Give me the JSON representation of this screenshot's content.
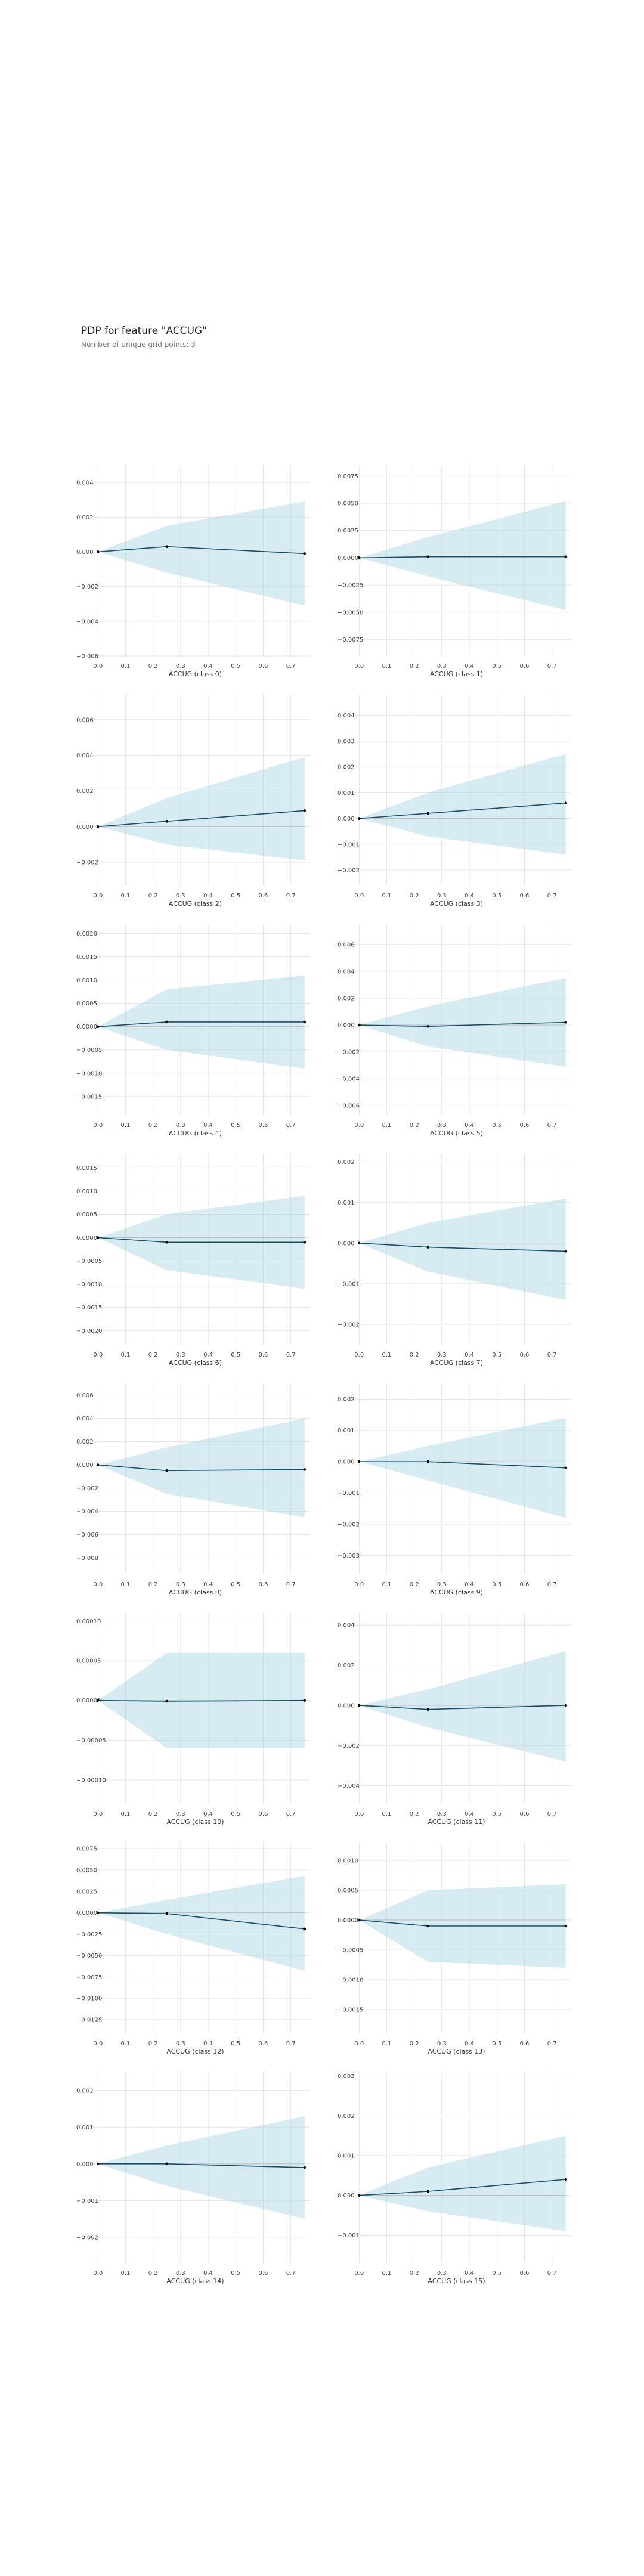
{
  "header": {
    "title": "PDP for feature \"ACCUG\"",
    "subtitle": "Number of unique grid points: 3"
  },
  "colors": {
    "band": "#add8e6",
    "line": "#1a4e66",
    "marker": "#000000",
    "zero": "#bbbbbb",
    "grid": "#e6e6e6"
  },
  "chart_data": [
    {
      "type": "line",
      "title": "",
      "xlabel": "ACCUG (class 0)",
      "x": [
        0,
        0.25,
        0.75
      ],
      "series": [
        {
          "values": [
            0,
            0.0003,
            -0.0001
          ]
        }
      ],
      "band_upper": [
        0,
        0.0015,
        0.0029
      ],
      "band_lower": [
        0,
        -0.0012,
        -0.0031
      ],
      "xticks": [
        0.0,
        0.1,
        0.2,
        0.3,
        0.4,
        0.5,
        0.6,
        0.7
      ],
      "xtick_labels": [
        "0.0",
        "0.1",
        "0.2",
        "0.3",
        "0.4",
        "0.5",
        "0.6",
        "0.7"
      ],
      "yticks": [
        -0.006,
        -0.004,
        -0.002,
        0,
        0.002,
        0.004
      ],
      "ytick_labels": [
        "−0.006",
        "−0.004",
        "−0.002",
        "0.000",
        "0.002",
        "0.004"
      ],
      "ylim": [
        -0.006,
        0.005
      ],
      "xlim": [
        -0.02,
        0.77
      ],
      "grid": true
    },
    {
      "type": "line",
      "title": "",
      "xlabel": "ACCUG (class 1)",
      "x": [
        0,
        0.25,
        0.75
      ],
      "series": [
        {
          "values": [
            0,
            0.0001,
            0.0001
          ]
        }
      ],
      "band_upper": [
        0,
        0.0019,
        0.0052
      ],
      "band_lower": [
        0,
        -0.0017,
        -0.0048
      ],
      "xticks": [
        0.0,
        0.1,
        0.2,
        0.3,
        0.4,
        0.5,
        0.6,
        0.7
      ],
      "xtick_labels": [
        "0.0",
        "0.1",
        "0.2",
        "0.3",
        "0.4",
        "0.5",
        "0.6",
        "0.7"
      ],
      "yticks": [
        -0.0075,
        -0.005,
        -0.0025,
        0,
        0.0025,
        0.005,
        0.0075
      ],
      "ytick_labels": [
        "−0.0075",
        "−0.0050",
        "−0.0025",
        "0.0000",
        "0.0025",
        "0.0050",
        "0.0075"
      ],
      "ylim": [
        -0.009,
        0.0085
      ],
      "xlim": [
        -0.02,
        0.77
      ],
      "grid": true
    },
    {
      "type": "line",
      "title": "",
      "xlabel": "ACCUG (class 2)",
      "x": [
        0,
        0.25,
        0.75
      ],
      "series": [
        {
          "values": [
            0,
            0.0003,
            0.0009
          ]
        }
      ],
      "band_upper": [
        0,
        0.0016,
        0.0039
      ],
      "band_lower": [
        0,
        -0.001,
        -0.0019
      ],
      "xticks": [
        0.0,
        0.1,
        0.2,
        0.3,
        0.4,
        0.5,
        0.6,
        0.7
      ],
      "xtick_labels": [
        "0.0",
        "0.1",
        "0.2",
        "0.3",
        "0.4",
        "0.5",
        "0.6",
        "0.7"
      ],
      "yticks": [
        -0.002,
        0,
        0.002,
        0.004,
        0.006
      ],
      "ytick_labels": [
        "−0.002",
        "0.000",
        "0.002",
        "0.004",
        "0.006"
      ],
      "ylim": [
        -0.0033,
        0.0074
      ],
      "xlim": [
        -0.02,
        0.77
      ],
      "grid": true
    },
    {
      "type": "line",
      "title": "",
      "xlabel": "ACCUG (class 3)",
      "x": [
        0,
        0.25,
        0.75
      ],
      "series": [
        {
          "values": [
            0,
            0.0002,
            0.0006
          ]
        }
      ],
      "band_upper": [
        0,
        0.001,
        0.0025
      ],
      "band_lower": [
        0,
        -0.0007,
        -0.0014
      ],
      "xticks": [
        0.0,
        0.1,
        0.2,
        0.3,
        0.4,
        0.5,
        0.6,
        0.7
      ],
      "xtick_labels": [
        "0.0",
        "0.1",
        "0.2",
        "0.3",
        "0.4",
        "0.5",
        "0.6",
        "0.7"
      ],
      "yticks": [
        -0.002,
        -0.001,
        0,
        0.001,
        0.002,
        0.003,
        0.004
      ],
      "ytick_labels": [
        "−0.002",
        "−0.001",
        "0.000",
        "0.001",
        "0.002",
        "0.003",
        "0.004"
      ],
      "ylim": [
        -0.0026,
        0.0048
      ],
      "xlim": [
        -0.02,
        0.77
      ],
      "grid": true
    },
    {
      "type": "line",
      "title": "",
      "xlabel": "ACCUG (class 4)",
      "x": [
        0,
        0.25,
        0.75
      ],
      "series": [
        {
          "values": [
            0,
            0.0001,
            0.0001
          ]
        }
      ],
      "band_upper": [
        0,
        0.0008,
        0.0011
      ],
      "band_lower": [
        0,
        -0.0005,
        -0.0009
      ],
      "xticks": [
        0.0,
        0.1,
        0.2,
        0.3,
        0.4,
        0.5,
        0.6,
        0.7
      ],
      "xtick_labels": [
        "0.0",
        "0.1",
        "0.2",
        "0.3",
        "0.4",
        "0.5",
        "0.6",
        "0.7"
      ],
      "yticks": [
        -0.0015,
        -0.001,
        -0.0005,
        0,
        0.0005,
        0.001,
        0.0015,
        0.002
      ],
      "ytick_labels": [
        "−0.0015",
        "−0.0010",
        "−0.0005",
        "0.0000",
        "0.0005",
        "0.0010",
        "0.0015",
        "0.0020"
      ],
      "ylim": [
        -0.0019,
        0.0022
      ],
      "xlim": [
        -0.02,
        0.77
      ],
      "grid": true
    },
    {
      "type": "line",
      "title": "",
      "xlabel": "ACCUG (class 5)",
      "x": [
        0,
        0.25,
        0.75
      ],
      "series": [
        {
          "values": [
            0,
            -0.0001,
            0.0002
          ]
        }
      ],
      "band_upper": [
        0,
        0.0014,
        0.0035
      ],
      "band_lower": [
        0,
        -0.0016,
        -0.0031
      ],
      "xticks": [
        0.0,
        0.1,
        0.2,
        0.3,
        0.4,
        0.5,
        0.6,
        0.7
      ],
      "xtick_labels": [
        "0.0",
        "0.1",
        "0.2",
        "0.3",
        "0.4",
        "0.5",
        "0.6",
        "0.7"
      ],
      "yticks": [
        -0.006,
        -0.004,
        -0.002,
        0,
        0.002,
        0.004,
        0.006
      ],
      "ytick_labels": [
        "−0.006",
        "−0.004",
        "−0.002",
        "0.000",
        "0.002",
        "0.004",
        "0.006"
      ],
      "ylim": [
        -0.0067,
        0.0075
      ],
      "xlim": [
        -0.02,
        0.77
      ],
      "grid": true
    },
    {
      "type": "line",
      "title": "",
      "xlabel": "ACCUG (class 6)",
      "x": [
        0,
        0.25,
        0.75
      ],
      "series": [
        {
          "values": [
            0,
            -0.0001,
            -0.0001
          ]
        }
      ],
      "band_upper": [
        0,
        0.0005,
        0.0009
      ],
      "band_lower": [
        0,
        -0.0007,
        -0.0011
      ],
      "xticks": [
        0.0,
        0.1,
        0.2,
        0.3,
        0.4,
        0.5,
        0.6,
        0.7
      ],
      "xtick_labels": [
        "0.0",
        "0.1",
        "0.2",
        "0.3",
        "0.4",
        "0.5",
        "0.6",
        "0.7"
      ],
      "yticks": [
        -0.002,
        -0.0015,
        -0.001,
        -0.0005,
        0,
        0.0005,
        0.001,
        0.0015
      ],
      "ytick_labels": [
        "−0.0020",
        "−0.0015",
        "−0.0010",
        "−0.0005",
        "0.0000",
        "0.0005",
        "0.0010",
        "0.0015"
      ],
      "ylim": [
        -0.0023,
        0.0018
      ],
      "xlim": [
        -0.02,
        0.77
      ],
      "grid": true
    },
    {
      "type": "line",
      "title": "",
      "xlabel": "ACCUG (class 7)",
      "x": [
        0,
        0.25,
        0.75
      ],
      "series": [
        {
          "values": [
            0,
            -0.0001,
            -0.0002
          ]
        }
      ],
      "band_upper": [
        0,
        0.0005,
        0.0011
      ],
      "band_lower": [
        0,
        -0.0007,
        -0.0014
      ],
      "xticks": [
        0.0,
        0.1,
        0.2,
        0.3,
        0.4,
        0.5,
        0.6,
        0.7
      ],
      "xtick_labels": [
        "0.0",
        "0.1",
        "0.2",
        "0.3",
        "0.4",
        "0.5",
        "0.6",
        "0.7"
      ],
      "yticks": [
        -0.002,
        -0.001,
        0,
        0.001,
        0.002
      ],
      "ytick_labels": [
        "−0.002",
        "−0.001",
        "0.000",
        "0.001",
        "0.002"
      ],
      "ylim": [
        -0.0025,
        0.0022
      ],
      "xlim": [
        -0.02,
        0.77
      ],
      "grid": true
    },
    {
      "type": "line",
      "title": "",
      "xlabel": "ACCUG (class 8)",
      "x": [
        0,
        0.25,
        0.75
      ],
      "series": [
        {
          "values": [
            0,
            -0.0005,
            -0.0004
          ]
        }
      ],
      "band_upper": [
        0,
        0.0015,
        0.004
      ],
      "band_lower": [
        0,
        -0.0025,
        -0.0045
      ],
      "xticks": [
        0.0,
        0.1,
        0.2,
        0.3,
        0.4,
        0.5,
        0.6,
        0.7
      ],
      "xtick_labels": [
        "0.0",
        "0.1",
        "0.2",
        "0.3",
        "0.4",
        "0.5",
        "0.6",
        "0.7"
      ],
      "yticks": [
        -0.008,
        -0.006,
        -0.004,
        -0.002,
        0,
        0.002,
        0.004,
        0.006
      ],
      "ytick_labels": [
        "−0.008",
        "−0.006",
        "−0.004",
        "−0.002",
        "0.000",
        "0.002",
        "0.004",
        "0.006"
      ],
      "ylim": [
        -0.0094,
        0.007
      ],
      "xlim": [
        -0.02,
        0.77
      ],
      "grid": true
    },
    {
      "type": "line",
      "title": "",
      "xlabel": "ACCUG (class 9)",
      "x": [
        0,
        0.25,
        0.75
      ],
      "series": [
        {
          "values": [
            0,
            0,
            -0.0002
          ]
        }
      ],
      "band_upper": [
        0,
        0.0005,
        0.0014
      ],
      "band_lower": [
        0,
        -0.0006,
        -0.0018
      ],
      "xticks": [
        0.0,
        0.1,
        0.2,
        0.3,
        0.4,
        0.5,
        0.6,
        0.7
      ],
      "xtick_labels": [
        "0.0",
        "0.1",
        "0.2",
        "0.3",
        "0.4",
        "0.5",
        "0.6",
        "0.7"
      ],
      "yticks": [
        -0.003,
        -0.002,
        -0.001,
        0,
        0.001,
        0.002
      ],
      "ytick_labels": [
        "−0.003",
        "−0.002",
        "−0.001",
        "0.000",
        "0.001",
        "0.002"
      ],
      "ylim": [
        -0.0036,
        0.0025
      ],
      "xlim": [
        -0.02,
        0.77
      ],
      "grid": true
    },
    {
      "type": "line",
      "title": "",
      "xlabel": "ACCUG (class 10)",
      "x": [
        0,
        0.25,
        0.75
      ],
      "series": [
        {
          "values": [
            0,
            -1e-06,
            0
          ]
        }
      ],
      "band_upper": [
        0,
        6e-05,
        6e-05
      ],
      "band_lower": [
        0,
        -6e-05,
        -6e-05
      ],
      "xticks": [
        0.0,
        0.1,
        0.2,
        0.3,
        0.4,
        0.5,
        0.6,
        0.7
      ],
      "xtick_labels": [
        "0.0",
        "0.1",
        "0.2",
        "0.3",
        "0.4",
        "0.5",
        "0.6",
        "0.7"
      ],
      "yticks": [
        -0.0001,
        -5e-05,
        0,
        5e-05,
        0.0001
      ],
      "ytick_labels": [
        "−0.00010",
        "−0.00005",
        "0.00000",
        "0.00005",
        "0.00010"
      ],
      "ylim": [
        -0.00013,
        0.00011
      ],
      "xlim": [
        -0.02,
        0.77
      ],
      "grid": true
    },
    {
      "type": "line",
      "title": "",
      "xlabel": "ACCUG (class 11)",
      "x": [
        0,
        0.25,
        0.75
      ],
      "series": [
        {
          "values": [
            0,
            -0.0002,
            0
          ]
        }
      ],
      "band_upper": [
        0,
        0.0008,
        0.0027
      ],
      "band_lower": [
        0,
        -0.0011,
        -0.0028
      ],
      "xticks": [
        0.0,
        0.1,
        0.2,
        0.3,
        0.4,
        0.5,
        0.6,
        0.7
      ],
      "xtick_labels": [
        "0.0",
        "0.1",
        "0.2",
        "0.3",
        "0.4",
        "0.5",
        "0.6",
        "0.7"
      ],
      "yticks": [
        -0.004,
        -0.002,
        0,
        0.002,
        0.004
      ],
      "ytick_labels": [
        "−0.004",
        "−0.002",
        "0.000",
        "0.002",
        "0.004"
      ],
      "ylim": [
        -0.0049,
        0.0046
      ],
      "xlim": [
        -0.02,
        0.77
      ],
      "grid": true
    },
    {
      "type": "line",
      "title": "",
      "xlabel": "ACCUG (class 12)",
      "x": [
        0,
        0.25,
        0.75
      ],
      "series": [
        {
          "values": [
            0,
            -0.0001,
            -0.0019
          ]
        }
      ],
      "band_upper": [
        0,
        0.0015,
        0.0043
      ],
      "band_lower": [
        0,
        -0.0025,
        -0.0068
      ],
      "xticks": [
        0.0,
        0.1,
        0.2,
        0.3,
        0.4,
        0.5,
        0.6,
        0.7
      ],
      "xtick_labels": [
        "0.0",
        "0.1",
        "0.2",
        "0.3",
        "0.4",
        "0.5",
        "0.6",
        "0.7"
      ],
      "yticks": [
        -0.0125,
        -0.01,
        -0.0075,
        -0.005,
        -0.0025,
        0,
        0.0025,
        0.005,
        0.0075
      ],
      "ytick_labels": [
        "−0.0125",
        "−0.0100",
        "−0.0075",
        "−0.0050",
        "−0.0025",
        "0.0000",
        "0.0025",
        "0.0050",
        "0.0075"
      ],
      "ylim": [
        -0.0141,
        0.0082
      ],
      "xlim": [
        -0.02,
        0.77
      ],
      "grid": true
    },
    {
      "type": "line",
      "title": "",
      "xlabel": "ACCUG (class 13)",
      "x": [
        0,
        0.25,
        0.75
      ],
      "series": [
        {
          "values": [
            0,
            -0.0001,
            -0.0001
          ]
        }
      ],
      "band_upper": [
        0,
        0.0005,
        0.0006
      ],
      "band_lower": [
        0,
        -0.0007,
        -0.0008
      ],
      "xticks": [
        0.0,
        0.1,
        0.2,
        0.3,
        0.4,
        0.5,
        0.6,
        0.7
      ],
      "xtick_labels": [
        "0.0",
        "0.1",
        "0.2",
        "0.3",
        "0.4",
        "0.5",
        "0.6",
        "0.7"
      ],
      "yticks": [
        -0.0015,
        -0.001,
        -0.0005,
        0,
        0.0005,
        0.001
      ],
      "ytick_labels": [
        "−0.0015",
        "−0.0010",
        "−0.0005",
        "0.0000",
        "0.0005",
        "0.0010"
      ],
      "ylim": [
        -0.0019,
        0.0013
      ],
      "xlim": [
        -0.02,
        0.77
      ],
      "grid": true
    },
    {
      "type": "line",
      "title": "",
      "xlabel": "ACCUG (class 14)",
      "x": [
        0,
        0.25,
        0.75
      ],
      "series": [
        {
          "values": [
            0,
            0,
            -0.0001
          ]
        }
      ],
      "band_upper": [
        0,
        0.0005,
        0.0013
      ],
      "band_lower": [
        0,
        -0.0006,
        -0.0015
      ],
      "xticks": [
        0.0,
        0.1,
        0.2,
        0.3,
        0.4,
        0.5,
        0.6,
        0.7
      ],
      "xtick_labels": [
        "0.0",
        "0.1",
        "0.2",
        "0.3",
        "0.4",
        "0.5",
        "0.6",
        "0.7"
      ],
      "yticks": [
        -0.002,
        -0.001,
        0,
        0.001,
        0.002
      ],
      "ytick_labels": [
        "−0.002",
        "−0.001",
        "0.000",
        "0.001",
        "0.002"
      ],
      "ylim": [
        -0.0027,
        0.0025
      ],
      "xlim": [
        -0.02,
        0.77
      ],
      "grid": true
    },
    {
      "type": "line",
      "title": "",
      "xlabel": "ACCUG (class 15)",
      "x": [
        0,
        0.25,
        0.75
      ],
      "series": [
        {
          "values": [
            0,
            0.0001,
            0.0004
          ]
        }
      ],
      "band_upper": [
        0,
        0.0007,
        0.0015
      ],
      "band_lower": [
        0,
        -0.0004,
        -0.0009
      ],
      "xticks": [
        0.0,
        0.1,
        0.2,
        0.3,
        0.4,
        0.5,
        0.6,
        0.7
      ],
      "xtick_labels": [
        "0.0",
        "0.1",
        "0.2",
        "0.3",
        "0.4",
        "0.5",
        "0.6",
        "0.7"
      ],
      "yticks": [
        -0.001,
        0,
        0.001,
        0.002,
        0.003
      ],
      "ytick_labels": [
        "−0.001",
        "0.000",
        "0.001",
        "0.002",
        "0.003"
      ],
      "ylim": [
        -0.0017,
        0.0031
      ],
      "xlim": [
        -0.02,
        0.77
      ],
      "grid": true
    }
  ]
}
